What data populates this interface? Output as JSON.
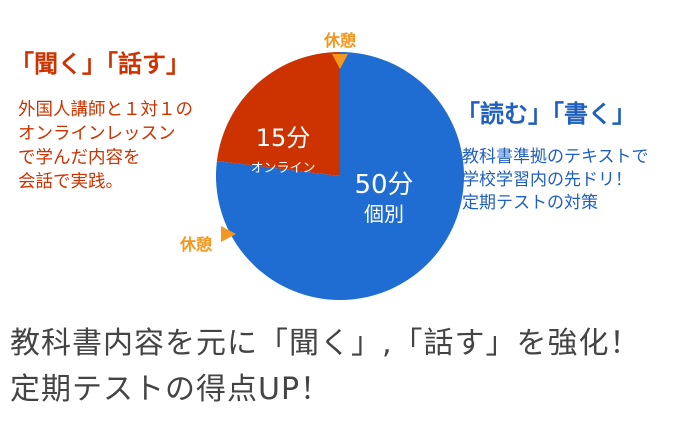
{
  "colors": {
    "online": "#cc3300",
    "individual": "#1f6dd3",
    "accent_orange": "#f5961e",
    "left_text": "#cc3300",
    "right_text": "#1f5fbf",
    "body_text": "#444444"
  },
  "left_panel": {
    "heading": "「聞く」「話す」",
    "body": "外国人講師と１対１の\nオンラインレッスン\nで学んだ内容を\n会話で実践。"
  },
  "right_panel": {
    "heading": "「読む」「書く」",
    "body": "教科書準拠のテキストで\n学校学習内の先ドリ！\n定期テストの対策"
  },
  "bottom": {
    "line1": "教科書内容を元に「聞く」,「話す」を強化！",
    "line2": "定期テストの得点UP！"
  },
  "chart_data": {
    "type": "pie",
    "unit": "分",
    "slices": [
      {
        "value_label": "15分",
        "sublabel": "オンライン",
        "value": 15,
        "color": "#cc3300"
      },
      {
        "value_label": "50分",
        "sublabel": "個別",
        "value": 50,
        "color": "#1f6dd3"
      }
    ],
    "annotations": [
      {
        "label": "休憩",
        "marker": "triangle-down",
        "position": "top"
      },
      {
        "label": "休憩",
        "marker": "triangle-right",
        "position": "lower-left"
      }
    ]
  }
}
